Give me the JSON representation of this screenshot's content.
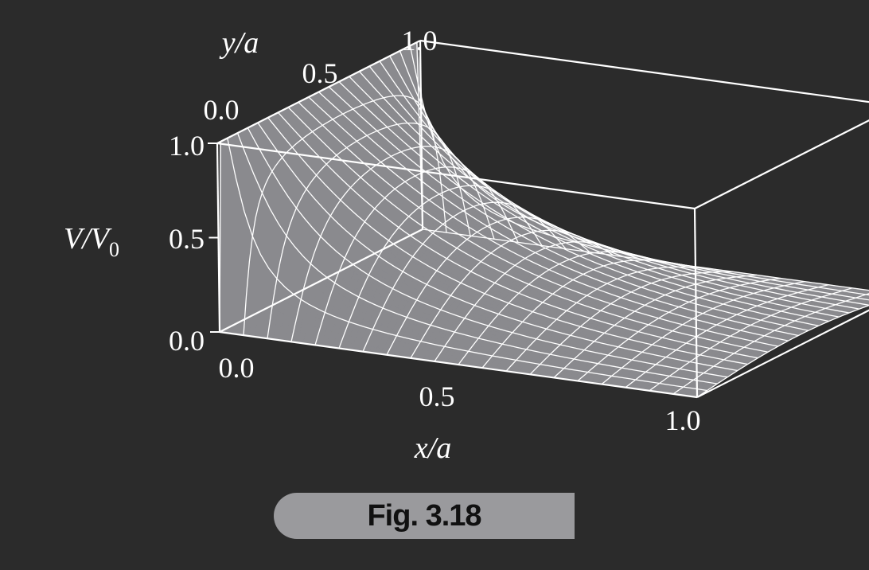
{
  "figure": {
    "tag": "Fig. 3.18"
  },
  "chart_data": {
    "type": "surface",
    "surface": "V/V0 = (2/π)·arctan( sin(πy/a) / sinh(πx/a) )",
    "x": {
      "label_text": "x/a",
      "ticks": [
        "0.0",
        "0.5",
        "1.0"
      ],
      "range": [
        0,
        1
      ]
    },
    "y": {
      "label_text": "y/a",
      "ticks": [
        "0.0",
        "0.5",
        "1.0"
      ],
      "range": [
        0,
        1
      ]
    },
    "z": {
      "label_main": "V/V",
      "label_sub": "0",
      "ticks": [
        "0.0",
        "0.5",
        "1.0"
      ],
      "range": [
        0,
        1
      ]
    },
    "grid": {
      "x_lines": 21,
      "y_lines": 21
    },
    "sample_values": [
      {
        "x": 0.0,
        "y": 0.5,
        "v": 1.0
      },
      {
        "x": 0.1,
        "y": 0.5,
        "v": 0.8
      },
      {
        "x": 0.25,
        "y": 0.5,
        "v": 0.54
      },
      {
        "x": 0.5,
        "y": 0.5,
        "v": 0.26
      },
      {
        "x": 0.75,
        "y": 0.5,
        "v": 0.12
      },
      {
        "x": 1.0,
        "y": 0.5,
        "v": 0.05
      }
    ],
    "colors": {
      "surface": "#8a8a8e",
      "mesh": "#ffffff",
      "box": "#ffffff",
      "background": "#2b2b2b"
    }
  }
}
